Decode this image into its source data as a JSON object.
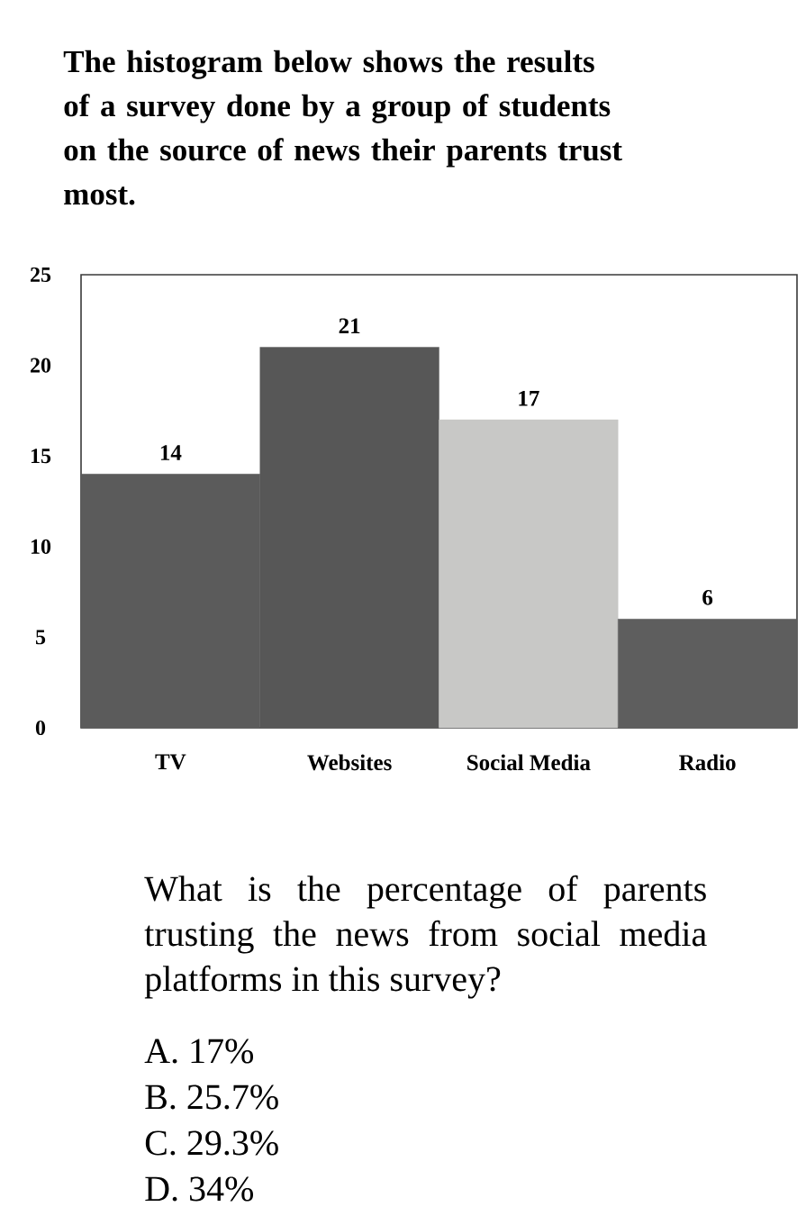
{
  "chart_data": {
    "type": "bar",
    "title": "The histogram below shows the results of a survey done by a group of students on the source of news their parents trust most.",
    "categories": [
      "TV",
      "Websites",
      "Social Media",
      "Radio"
    ],
    "values": [
      14,
      21,
      17,
      6
    ],
    "colors": [
      "#5b5b5b",
      "#575757",
      "#c8c8c6",
      "#5e5e5e"
    ],
    "ylim": [
      0,
      25
    ],
    "yticks": [
      0,
      5,
      10,
      15,
      20,
      25
    ],
    "data_labels": true,
    "annotations": [
      "What is the percentage of parents trusting the news from social media platforms in this survey?",
      "A. 17%",
      "B. 25.7%",
      "C. 29.3%",
      "D. 34%"
    ]
  }
}
